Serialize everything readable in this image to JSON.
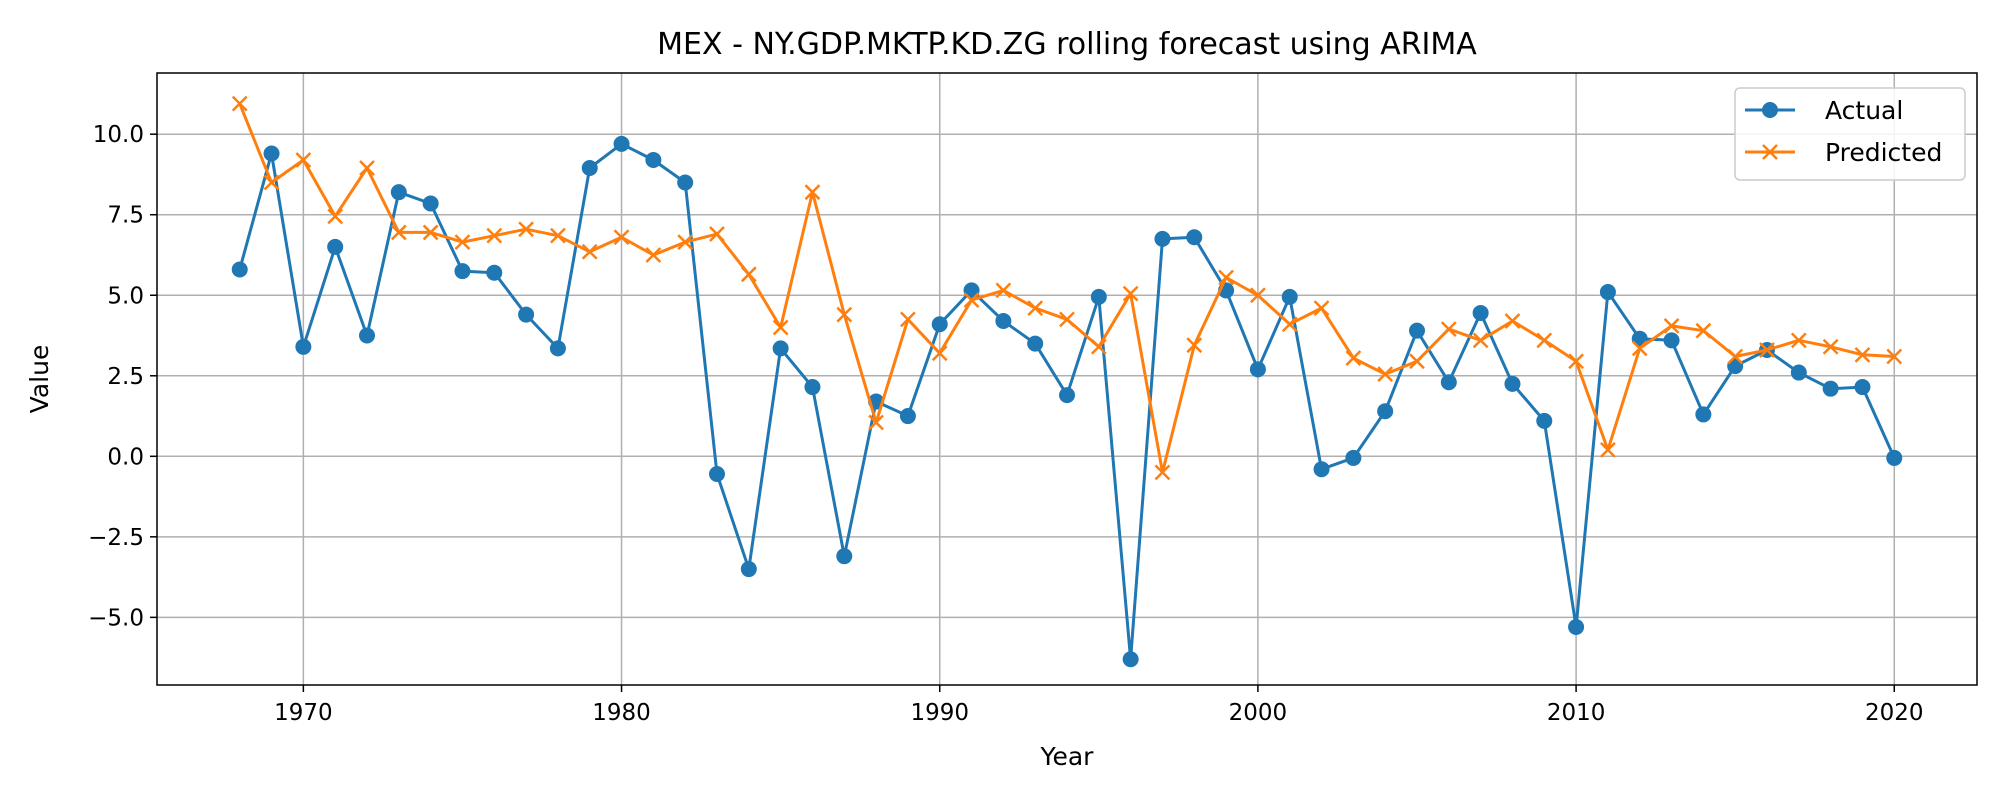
{
  "chart_data": {
    "type": "line",
    "title": "MEX - NY.GDP.MKTP.KD.ZG rolling forecast using ARIMA",
    "xlabel": "Year",
    "ylabel": "Value",
    "xlim": [
      1965.4,
      2022.6
    ],
    "ylim": [
      -7.1,
      11.9
    ],
    "xticks": [
      1970,
      1980,
      1990,
      2000,
      2010,
      2020
    ],
    "xtick_labels": [
      "1970",
      "1980",
      "1990",
      "2000",
      "2010",
      "2020"
    ],
    "yticks": [
      -5.0,
      -2.5,
      0.0,
      2.5,
      5.0,
      7.5,
      10.0
    ],
    "ytick_labels": [
      "−5.0",
      "−2.5",
      "0.0",
      "2.5",
      "5.0",
      "7.5",
      "10.0"
    ],
    "grid": true,
    "legend_position": "top-right",
    "x": [
      1968,
      1969,
      1970,
      1971,
      1972,
      1973,
      1974,
      1975,
      1976,
      1977,
      1978,
      1979,
      1980,
      1981,
      1982,
      1983,
      1984,
      1985,
      1986,
      1987,
      1988,
      1989,
      1990,
      1991,
      1992,
      1993,
      1994,
      1995,
      1996,
      1997,
      1998,
      1999,
      2000,
      2001,
      2002,
      2003,
      2004,
      2005,
      2006,
      2007,
      2008,
      2009,
      2010,
      2011,
      2012,
      2013,
      2014,
      2015,
      2016,
      2017,
      2018,
      2019,
      2020
    ],
    "series": [
      {
        "name": "Actual",
        "color": "#1f77b4",
        "marker": "circle",
        "values": [
          5.8,
          9.4,
          3.4,
          6.5,
          3.75,
          8.2,
          7.85,
          5.75,
          5.7,
          4.4,
          3.35,
          8.95,
          9.7,
          9.2,
          8.5,
          -0.55,
          -3.5,
          3.35,
          2.15,
          -3.1,
          1.7,
          1.25,
          4.1,
          5.15,
          4.2,
          3.5,
          1.9,
          4.95,
          -6.3,
          6.75,
          6.8,
          5.15,
          2.7,
          4.95,
          -0.4,
          -0.05,
          1.4,
          3.9,
          2.3,
          4.45,
          2.25,
          1.1,
          -5.3,
          5.1,
          3.65,
          3.6,
          1.3,
          2.8,
          3.3,
          2.6,
          2.1,
          2.15,
          -0.05
        ]
      },
      {
        "name": "Predicted",
        "color": "#ff7f0e",
        "marker": "x",
        "values": [
          10.95,
          8.5,
          9.2,
          7.45,
          8.95,
          6.95,
          6.95,
          6.65,
          6.85,
          7.05,
          6.85,
          6.35,
          6.8,
          6.25,
          6.65,
          6.9,
          5.65,
          4.0,
          8.2,
          4.4,
          1.05,
          4.25,
          3.2,
          4.85,
          5.15,
          4.6,
          4.25,
          3.4,
          5.05,
          -0.5,
          3.45,
          5.55,
          5.0,
          4.1,
          4.6,
          3.05,
          2.55,
          2.95,
          3.95,
          3.6,
          4.2,
          3.6,
          2.95,
          0.2,
          3.35,
          4.05,
          3.9,
          3.1,
          3.3,
          3.6,
          3.4,
          3.15,
          3.1
        ]
      }
    ]
  }
}
